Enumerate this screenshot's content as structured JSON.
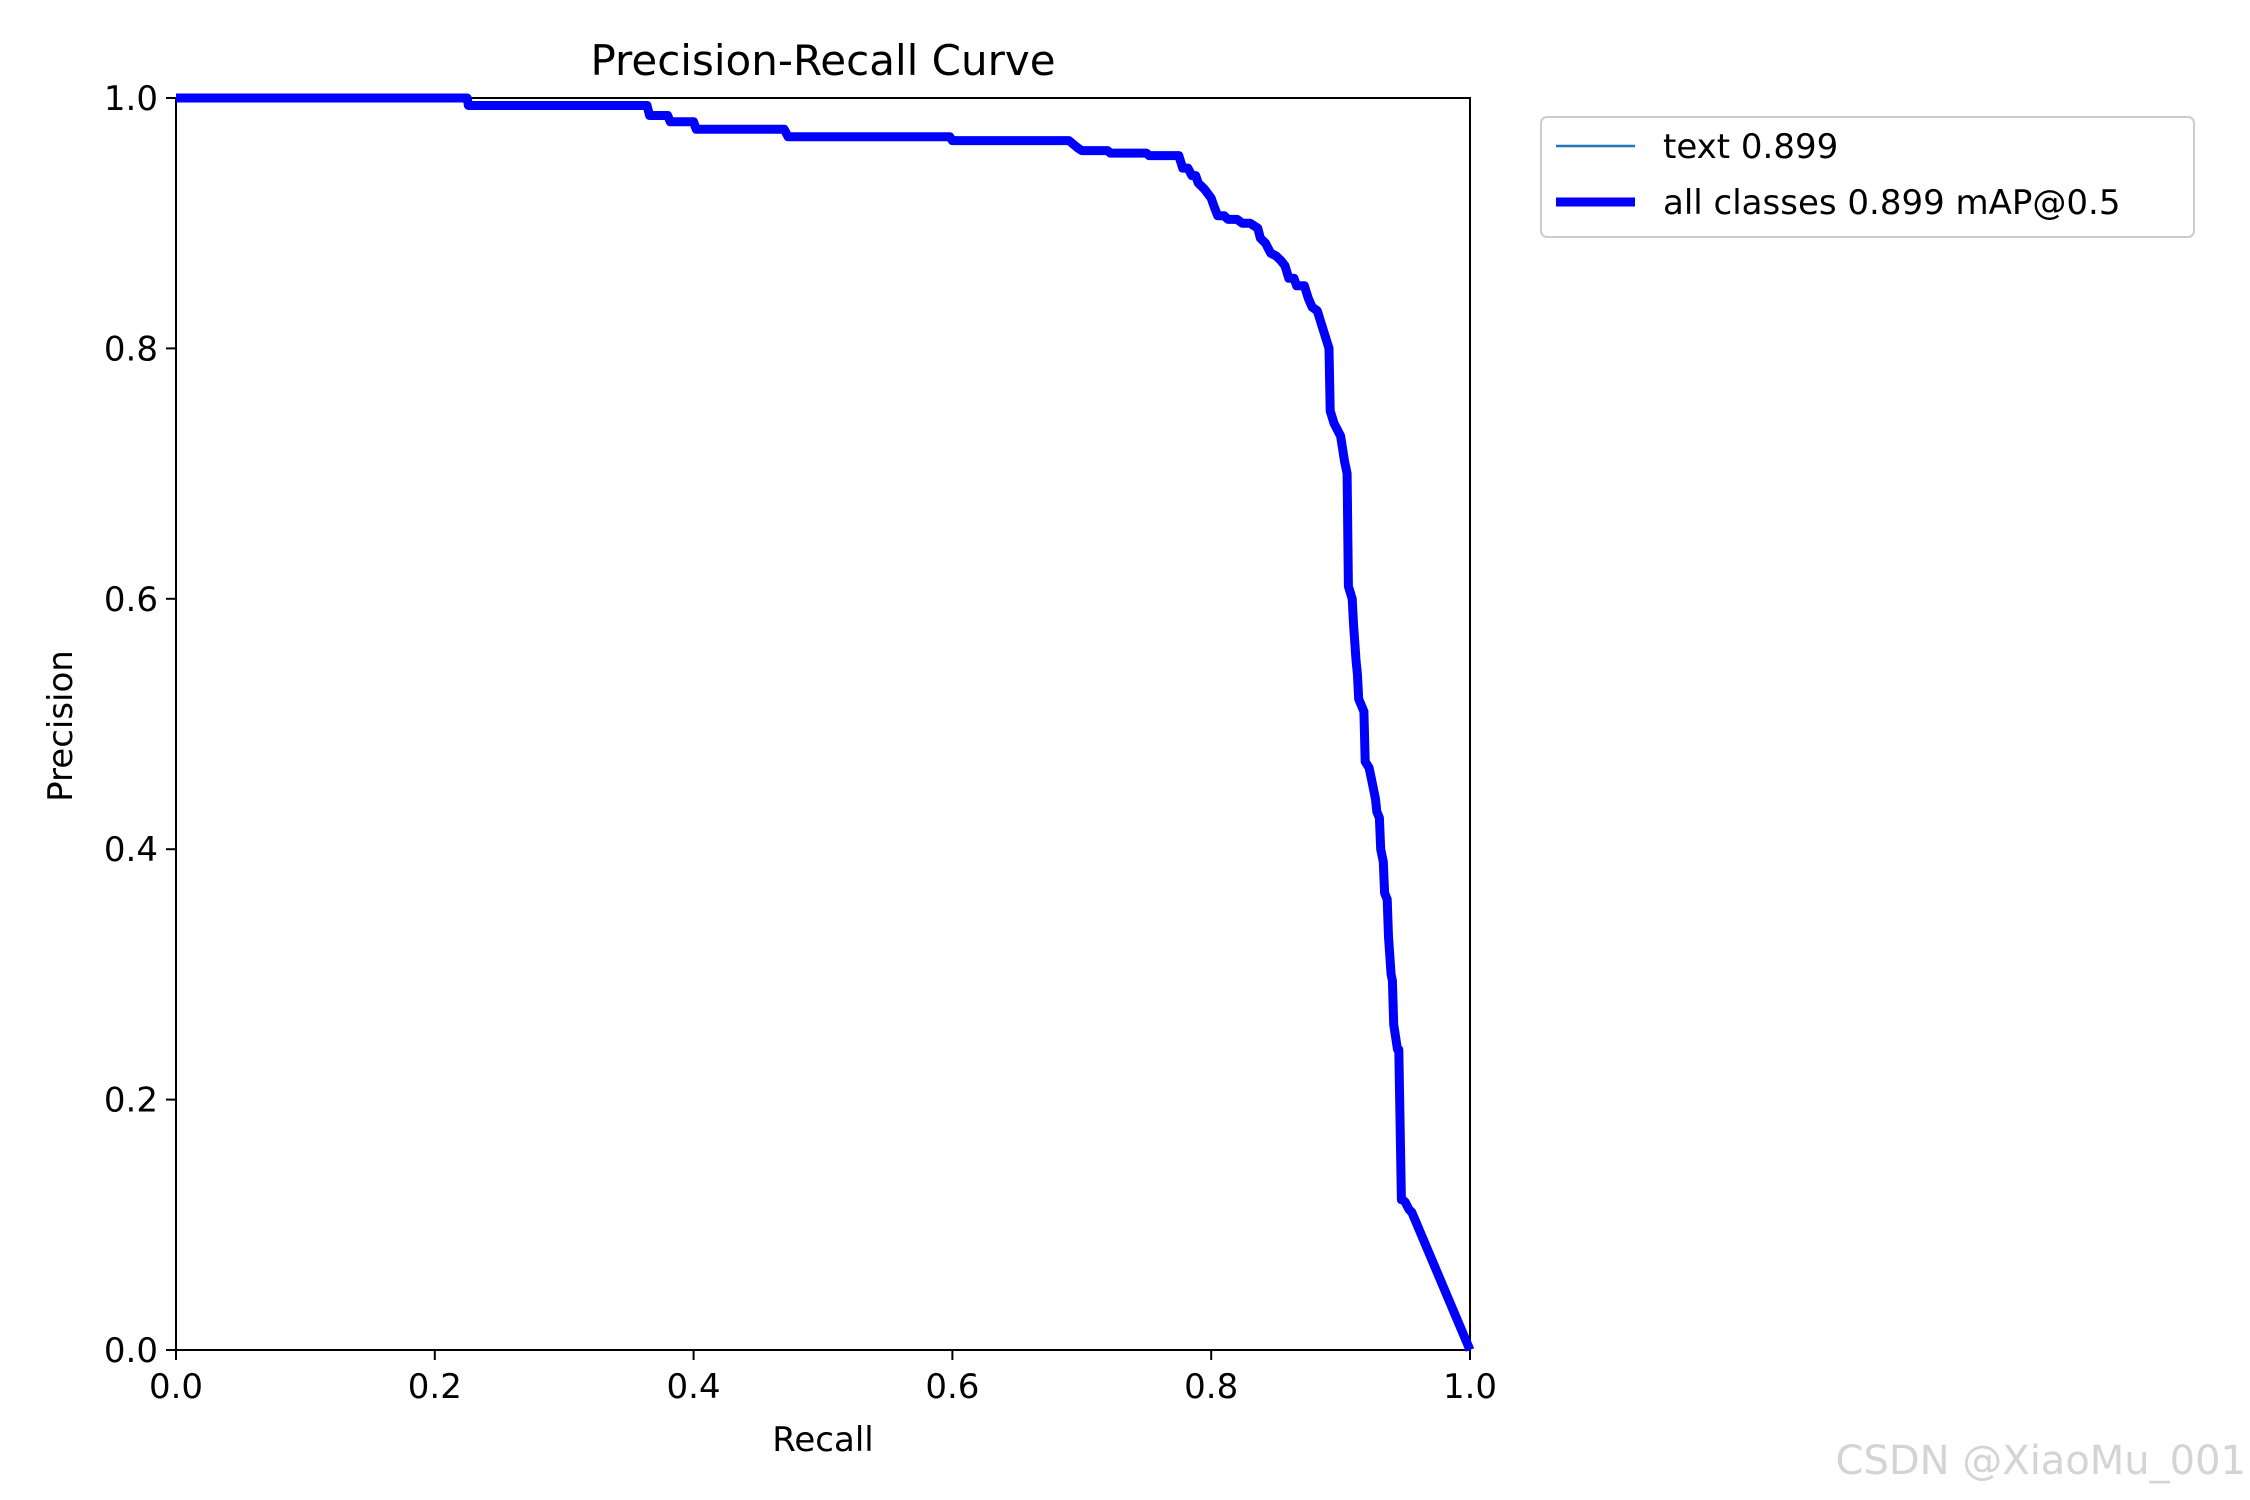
{
  "chart_data": {
    "type": "line",
    "title": "Precision-Recall Curve",
    "xlabel": "Recall",
    "ylabel": "Precision",
    "xlim": [
      0.0,
      1.0
    ],
    "ylim": [
      0.0,
      1.0
    ],
    "xticks": [
      "0.0",
      "0.2",
      "0.4",
      "0.6",
      "0.8",
      "1.0"
    ],
    "yticks": [
      "0.0",
      "0.2",
      "0.4",
      "0.6",
      "0.8",
      "1.0"
    ],
    "grid": false,
    "legend_position": "outside top-right",
    "series": [
      {
        "name": "text 0.899",
        "color": "#1f77b4",
        "style": "thin",
        "x": [
          0.0,
          0.225,
          0.226,
          0.364,
          0.366,
          0.38,
          0.382,
          0.4,
          0.402,
          0.47,
          0.473,
          0.598,
          0.6,
          0.69,
          0.697,
          0.7,
          0.72,
          0.722,
          0.75,
          0.752,
          0.775,
          0.778,
          0.782,
          0.785,
          0.788,
          0.79,
          0.795,
          0.8,
          0.802,
          0.805,
          0.81,
          0.813,
          0.82,
          0.824,
          0.83,
          0.836,
          0.838,
          0.842,
          0.846,
          0.85,
          0.854,
          0.857,
          0.86,
          0.864,
          0.866,
          0.872,
          0.875,
          0.878,
          0.882,
          0.885,
          0.888,
          0.891,
          0.892,
          0.895,
          0.9,
          0.903,
          0.905,
          0.906,
          0.909,
          0.91,
          0.912,
          0.913,
          0.914,
          0.916,
          0.918,
          0.919,
          0.922,
          0.924,
          0.925,
          0.927,
          0.928,
          0.93,
          0.931,
          0.933,
          0.934,
          0.936,
          0.937,
          0.939,
          0.94,
          0.941,
          0.944,
          0.945,
          0.947,
          0.948,
          0.95,
          0.951,
          0.953,
          0.955,
          1.0
        ],
        "y": [
          1.0,
          1.0,
          0.994,
          0.994,
          0.986,
          0.986,
          0.981,
          0.981,
          0.975,
          0.975,
          0.969,
          0.969,
          0.966,
          0.966,
          0.96,
          0.958,
          0.958,
          0.956,
          0.956,
          0.954,
          0.954,
          0.944,
          0.944,
          0.938,
          0.938,
          0.932,
          0.927,
          0.92,
          0.914,
          0.906,
          0.906,
          0.903,
          0.903,
          0.9,
          0.9,
          0.896,
          0.888,
          0.884,
          0.876,
          0.874,
          0.87,
          0.866,
          0.856,
          0.856,
          0.85,
          0.85,
          0.84,
          0.833,
          0.83,
          0.82,
          0.81,
          0.8,
          0.75,
          0.74,
          0.73,
          0.71,
          0.7,
          0.61,
          0.6,
          0.58,
          0.55,
          0.54,
          0.52,
          0.515,
          0.51,
          0.47,
          0.465,
          0.455,
          0.45,
          0.44,
          0.43,
          0.425,
          0.4,
          0.39,
          0.365,
          0.36,
          0.33,
          0.3,
          0.295,
          0.26,
          0.24,
          0.24,
          0.12,
          0.12,
          0.118,
          0.116,
          0.112,
          0.11,
          0.0
        ]
      },
      {
        "name": "all classes 0.899 mAP@0.5",
        "color": "#0000ff",
        "style": "thick",
        "x": [
          0.0,
          0.225,
          0.226,
          0.364,
          0.366,
          0.38,
          0.382,
          0.4,
          0.402,
          0.47,
          0.473,
          0.598,
          0.6,
          0.69,
          0.697,
          0.7,
          0.72,
          0.722,
          0.75,
          0.752,
          0.775,
          0.778,
          0.782,
          0.785,
          0.788,
          0.79,
          0.795,
          0.8,
          0.802,
          0.805,
          0.81,
          0.813,
          0.82,
          0.824,
          0.83,
          0.836,
          0.838,
          0.842,
          0.846,
          0.85,
          0.854,
          0.857,
          0.86,
          0.864,
          0.866,
          0.872,
          0.875,
          0.878,
          0.882,
          0.885,
          0.888,
          0.891,
          0.892,
          0.895,
          0.9,
          0.903,
          0.905,
          0.906,
          0.909,
          0.91,
          0.912,
          0.913,
          0.914,
          0.916,
          0.918,
          0.919,
          0.922,
          0.924,
          0.925,
          0.927,
          0.928,
          0.93,
          0.931,
          0.933,
          0.934,
          0.936,
          0.937,
          0.939,
          0.94,
          0.941,
          0.944,
          0.945,
          0.947,
          0.948,
          0.95,
          0.951,
          0.953,
          0.955,
          1.0
        ],
        "y": [
          1.0,
          1.0,
          0.994,
          0.994,
          0.986,
          0.986,
          0.981,
          0.981,
          0.975,
          0.975,
          0.969,
          0.969,
          0.966,
          0.966,
          0.96,
          0.958,
          0.958,
          0.956,
          0.956,
          0.954,
          0.954,
          0.944,
          0.944,
          0.938,
          0.938,
          0.932,
          0.927,
          0.92,
          0.914,
          0.906,
          0.906,
          0.903,
          0.903,
          0.9,
          0.9,
          0.896,
          0.888,
          0.884,
          0.876,
          0.874,
          0.87,
          0.866,
          0.856,
          0.856,
          0.85,
          0.85,
          0.84,
          0.833,
          0.83,
          0.82,
          0.81,
          0.8,
          0.75,
          0.74,
          0.73,
          0.71,
          0.7,
          0.61,
          0.6,
          0.58,
          0.55,
          0.54,
          0.52,
          0.515,
          0.51,
          0.47,
          0.465,
          0.455,
          0.45,
          0.44,
          0.43,
          0.425,
          0.4,
          0.39,
          0.365,
          0.36,
          0.33,
          0.3,
          0.295,
          0.26,
          0.24,
          0.24,
          0.12,
          0.12,
          0.118,
          0.116,
          0.112,
          0.11,
          0.0
        ]
      }
    ]
  },
  "watermark": "CSDN @XiaoMu_001"
}
